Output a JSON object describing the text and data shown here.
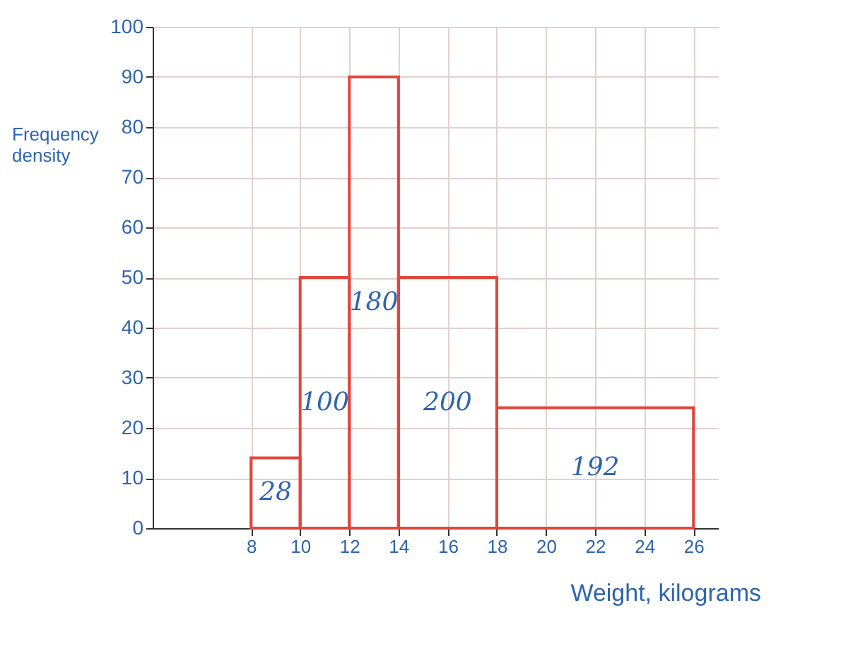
{
  "chart_data": {
    "type": "histogram",
    "xlabel": "Weight, kilograms",
    "ylabel": "Frequency density",
    "bins": [
      8,
      10,
      12,
      14,
      18,
      26
    ],
    "values": [
      14,
      50,
      90,
      50,
      24
    ],
    "color": "#e0463c",
    "xlim": [
      4,
      27
    ],
    "xticks": [
      8,
      10,
      12,
      14,
      16,
      18,
      20,
      22,
      24,
      26
    ],
    "ylim": [
      0,
      100
    ],
    "yticks": [
      0,
      10,
      20,
      30,
      40,
      50,
      60,
      70,
      80,
      90,
      100
    ],
    "grid": true,
    "annotations": [
      "28",
      "100",
      "180",
      "200",
      "192"
    ]
  }
}
